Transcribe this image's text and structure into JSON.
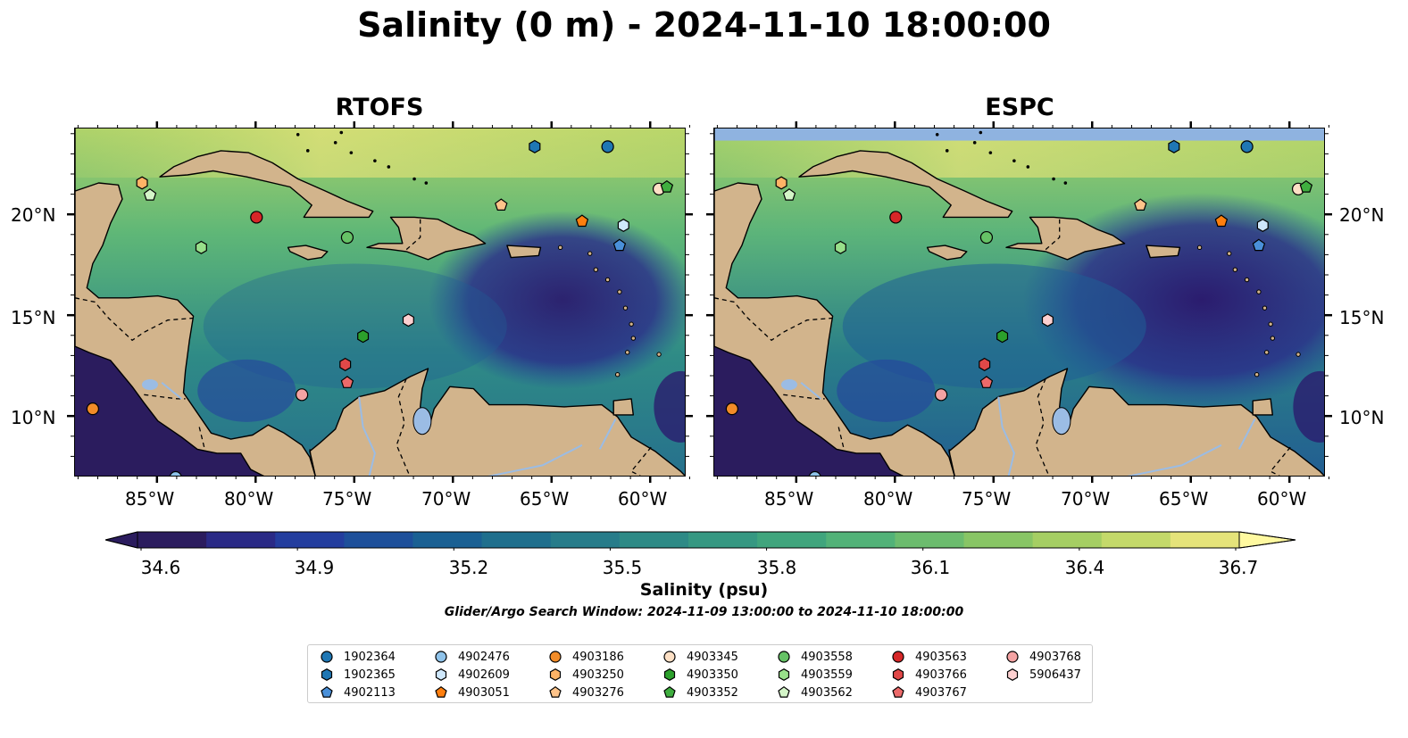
{
  "title": "Salinity (0 m) - 2024-11-10 18:00:00",
  "panels": [
    {
      "title": "RTOFS",
      "model": "rtofs"
    },
    {
      "title": "ESPC",
      "model": "espc"
    }
  ],
  "axes": {
    "lat_ticks": [
      "20°N",
      "15°N",
      "10°N"
    ],
    "lon_ticks": [
      "85°W",
      "80°W",
      "75°W",
      "70°W",
      "65°W",
      "60°W"
    ]
  },
  "colorbar": {
    "label": "Salinity (psu)",
    "ticks": [
      "34.6",
      "34.9",
      "35.2",
      "35.5",
      "35.8",
      "36.1",
      "36.4",
      "36.7"
    ],
    "colors": [
      "#2b1c5e",
      "#2a2a86",
      "#233d9e",
      "#1d4f9a",
      "#1a6093",
      "#1f6f8d",
      "#277c8a",
      "#2e8a86",
      "#369882",
      "#40a57d",
      "#52b278",
      "#6cbc6e",
      "#88c565",
      "#a5ce63",
      "#c4d96a",
      "#e5e37a"
    ]
  },
  "search_window": "Glider/Argo Search Window: 2024-11-09 13:00:00 to 2024-11-10 18:00:00",
  "legend": [
    {
      "id": "1902364",
      "marker": "circle",
      "color": "#1f77b4"
    },
    {
      "id": "1902365",
      "marker": "hexagon",
      "color": "#1f77b4"
    },
    {
      "id": "4902113",
      "marker": "pentagon",
      "color": "#4a90d9"
    },
    {
      "id": "4902476",
      "marker": "circle",
      "color": "#8fc3ea"
    },
    {
      "id": "4902609",
      "marker": "hexagon",
      "color": "#cfe8fb"
    },
    {
      "id": "4903051",
      "marker": "pentagon",
      "color": "#ff7f0e"
    },
    {
      "id": "4903186",
      "marker": "circle",
      "color": "#f28c28"
    },
    {
      "id": "4903250",
      "marker": "hexagon",
      "color": "#ffb366"
    },
    {
      "id": "4903276",
      "marker": "pentagon",
      "color": "#ffc48a"
    },
    {
      "id": "4903345",
      "marker": "circle",
      "color": "#fde0c5"
    },
    {
      "id": "4903350",
      "marker": "hexagon",
      "color": "#2ca02c"
    },
    {
      "id": "4903352",
      "marker": "pentagon",
      "color": "#3fae3f"
    },
    {
      "id": "4903558",
      "marker": "circle",
      "color": "#66c266"
    },
    {
      "id": "4903559",
      "marker": "hexagon",
      "color": "#98df8a"
    },
    {
      "id": "4903562",
      "marker": "pentagon",
      "color": "#d4f5c8"
    },
    {
      "id": "4903563",
      "marker": "circle",
      "color": "#d62728"
    },
    {
      "id": "4903766",
      "marker": "hexagon",
      "color": "#e04848"
    },
    {
      "id": "4903767",
      "marker": "pentagon",
      "color": "#ec6a6a"
    },
    {
      "id": "4903768",
      "marker": "circle",
      "color": "#f4a3a3"
    },
    {
      "id": "5906437",
      "marker": "hexagon",
      "color": "#fdd0d0"
    }
  ],
  "floats": [
    {
      "id": "1902364",
      "lon": -62.2,
      "lat": 23.4
    },
    {
      "id": "1902365",
      "lon": -65.9,
      "lat": 23.4
    },
    {
      "id": "4902113",
      "lon": -61.6,
      "lat": 18.5
    },
    {
      "id": "4902476",
      "lon": -84.1,
      "lat": 7.0
    },
    {
      "id": "4902609",
      "lon": -61.4,
      "lat": 19.5
    },
    {
      "id": "4903051",
      "lon": -63.5,
      "lat": 19.7
    },
    {
      "id": "4903186",
      "lon": -88.3,
      "lat": 10.4
    },
    {
      "id": "4903250",
      "lon": -85.8,
      "lat": 21.6
    },
    {
      "id": "4903276",
      "lon": -67.6,
      "lat": 20.5
    },
    {
      "id": "4903345",
      "lon": -59.6,
      "lat": 21.3
    },
    {
      "id": "4903350",
      "lon": -74.6,
      "lat": 14.0
    },
    {
      "id": "4903352",
      "lon": -59.2,
      "lat": 21.4
    },
    {
      "id": "4903558",
      "lon": -75.4,
      "lat": 18.9
    },
    {
      "id": "4903559",
      "lon": -82.8,
      "lat": 18.4
    },
    {
      "id": "4903562",
      "lon": -85.4,
      "lat": 21.0
    },
    {
      "id": "4903563",
      "lon": -80.0,
      "lat": 19.9
    },
    {
      "id": "4903766",
      "lon": -75.5,
      "lat": 12.6
    },
    {
      "id": "4903767",
      "lon": -75.4,
      "lat": 11.7
    },
    {
      "id": "4903768",
      "lon": -77.7,
      "lat": 11.1
    },
    {
      "id": "5906437",
      "lon": -72.3,
      "lat": 14.8
    }
  ]
}
